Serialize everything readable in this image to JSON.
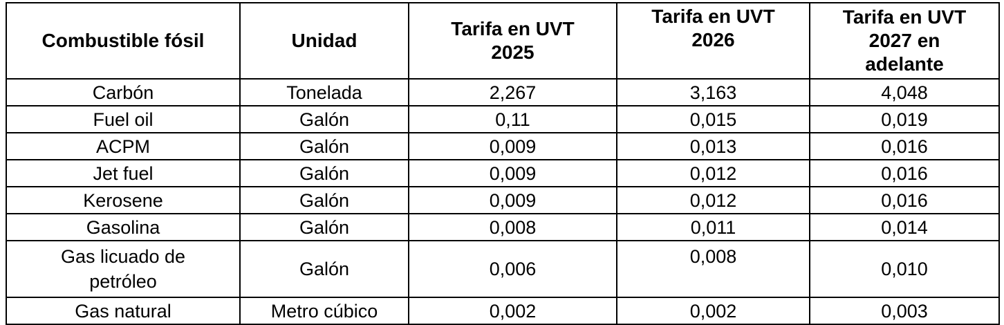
{
  "table": {
    "headers": [
      "Combustible fósil",
      "Unidad",
      "Tarifa en UVT 2025",
      "Tarifa en UVT 2026",
      "Tarifa en UVT 2027 en adelante"
    ],
    "rows": [
      [
        "Carbón",
        "Tonelada",
        "2,267",
        "3,163",
        "4,048"
      ],
      [
        "Fuel oil",
        "Galón",
        "0,11",
        "0,015",
        "0,019"
      ],
      [
        "ACPM",
        "Galón",
        "0,009",
        "0,013",
        "0,016"
      ],
      [
        "Jet fuel",
        "Galón",
        "0,009",
        "0,012",
        "0,016"
      ],
      [
        "Kerosene",
        "Galón",
        "0,009",
        "0,012",
        "0,016"
      ],
      [
        "Gasolina",
        "Galón",
        "0,008",
        "0,011",
        "0,014"
      ],
      [
        "Gas licuado de petróleo",
        "Galón",
        "0,006",
        "0,008",
        "0,010"
      ],
      [
        "Gas natural",
        "Metro cúbico",
        "0,002",
        "0,002",
        "0,003"
      ]
    ]
  }
}
